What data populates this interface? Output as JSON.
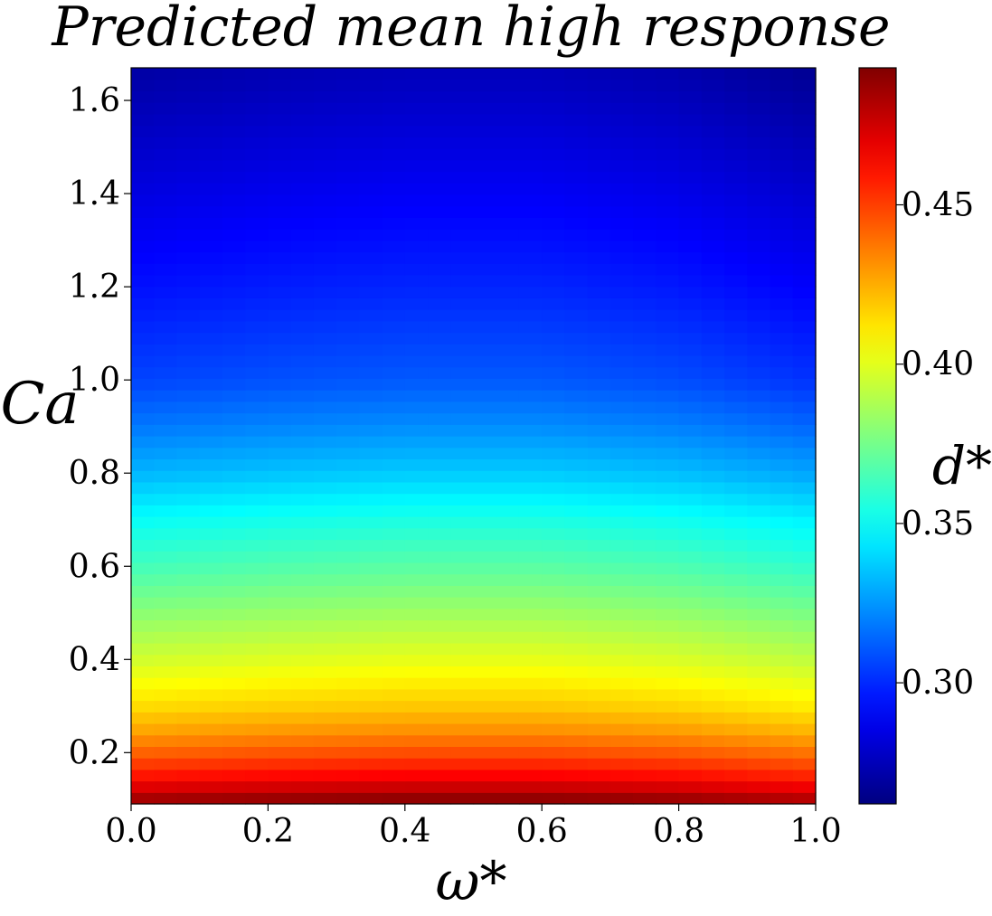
{
  "chart_data": {
    "type": "heatmap",
    "title": "Predicted mean high response",
    "xlabel": "ω*",
    "ylabel": "Ca",
    "colorbar_label": "d*",
    "colormap": "jet",
    "xlim": [
      0.0,
      1.0
    ],
    "ylim": [
      0.09,
      1.67
    ],
    "x_ticks": [
      0.0,
      0.2,
      0.4,
      0.6,
      0.8,
      1.0
    ],
    "x_tick_labels": [
      "0.0",
      "0.2",
      "0.4",
      "0.6",
      "0.8",
      "1.0"
    ],
    "y_ticks": [
      0.2,
      0.4,
      0.6,
      0.8,
      1.0,
      1.2,
      1.4,
      1.6
    ],
    "y_tick_labels": [
      "0.2",
      "0.4",
      "0.6",
      "0.8",
      "1.0",
      "1.2",
      "1.4",
      "1.6"
    ],
    "color_range": [
      0.262,
      0.493
    ],
    "colorbar_ticks": [
      0.3,
      0.35,
      0.4,
      0.45
    ],
    "colorbar_tick_labels": [
      "0.30",
      "0.35",
      "0.40",
      "0.45"
    ],
    "ca_profile": {
      "ca": [
        0.09,
        0.12,
        0.15,
        0.2,
        0.25,
        0.3,
        0.35,
        0.4,
        0.5,
        0.6,
        0.7,
        0.8,
        0.9,
        1.0,
        1.2,
        1.4,
        1.67
      ],
      "d_star": [
        0.49,
        0.474,
        0.46,
        0.442,
        0.426,
        0.414,
        0.405,
        0.396,
        0.38,
        0.364,
        0.35,
        0.332,
        0.318,
        0.306,
        0.294,
        0.284,
        0.27
      ]
    },
    "omega_profile": {
      "omega": [
        0.0,
        0.2,
        0.4,
        0.6,
        0.8,
        1.0
      ],
      "delta_d_star": [
        0.0,
        0.003,
        0.005,
        0.005,
        0.002,
        -0.004
      ]
    }
  }
}
